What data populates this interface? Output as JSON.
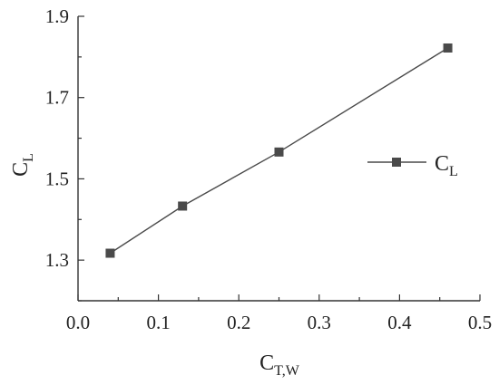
{
  "chart_data": {
    "type": "line",
    "x": [
      0.04,
      0.13,
      0.25,
      0.46
    ],
    "series": [
      {
        "name": "C_L",
        "values": [
          1.317,
          1.433,
          1.566,
          1.822
        ]
      }
    ],
    "xlim": [
      0.0,
      0.5
    ],
    "ylim": [
      1.2,
      1.9
    ],
    "x_ticks": [
      "0.0",
      "0.1",
      "0.2",
      "0.3",
      "0.4",
      "0.5"
    ],
    "y_ticks": [
      "1.3",
      "1.5",
      "1.7",
      "1.9"
    ],
    "xlabel_main": "C",
    "xlabel_sub": "T,W",
    "ylabel_main": "C",
    "ylabel_sub": "L",
    "legend_main": "C",
    "legend_sub": "L",
    "legend_position": "right",
    "marker": "square",
    "grid": false,
    "color": "#4a4a4a"
  }
}
